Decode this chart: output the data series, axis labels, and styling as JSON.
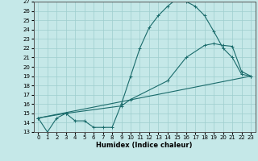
{
  "xlabel": "Humidex (Indice chaleur)",
  "ylabel": "",
  "xlim": [
    -0.5,
    23.5
  ],
  "ylim": [
    13,
    27
  ],
  "bg_color": "#c5e8e8",
  "grid_color": "#9ecece",
  "line_color": "#1a6b6b",
  "curve1_x": [
    0,
    1,
    2,
    3,
    4,
    5,
    6,
    7,
    8,
    9,
    10,
    11,
    12,
    13,
    14,
    15,
    16,
    17,
    18,
    19,
    20,
    21,
    22,
    23
  ],
  "curve1_y": [
    14.5,
    13.0,
    14.5,
    15.0,
    14.2,
    14.2,
    13.5,
    13.5,
    13.5,
    16.0,
    19.0,
    22.0,
    24.2,
    25.5,
    26.5,
    27.3,
    27.0,
    26.5,
    25.5,
    23.8,
    22.0,
    21.0,
    19.2,
    19.0
  ],
  "curve2_x": [
    0,
    3,
    9,
    10,
    14,
    16,
    18,
    19,
    20,
    21,
    22,
    23
  ],
  "curve2_y": [
    14.5,
    15.0,
    15.8,
    16.5,
    18.5,
    21.0,
    22.3,
    22.5,
    22.3,
    22.2,
    19.5,
    19.0
  ],
  "curve3_x": [
    0,
    23
  ],
  "curve3_y": [
    14.5,
    19.0
  ],
  "xticks": [
    0,
    1,
    2,
    3,
    4,
    5,
    6,
    7,
    8,
    9,
    10,
    11,
    12,
    13,
    14,
    15,
    16,
    17,
    18,
    19,
    20,
    21,
    22,
    23
  ],
  "yticks": [
    13,
    14,
    15,
    16,
    17,
    18,
    19,
    20,
    21,
    22,
    23,
    24,
    25,
    26,
    27
  ],
  "marker": "+",
  "markersize": 3,
  "linewidth": 0.8,
  "tick_labelsize": 5,
  "xlabel_fontsize": 6
}
